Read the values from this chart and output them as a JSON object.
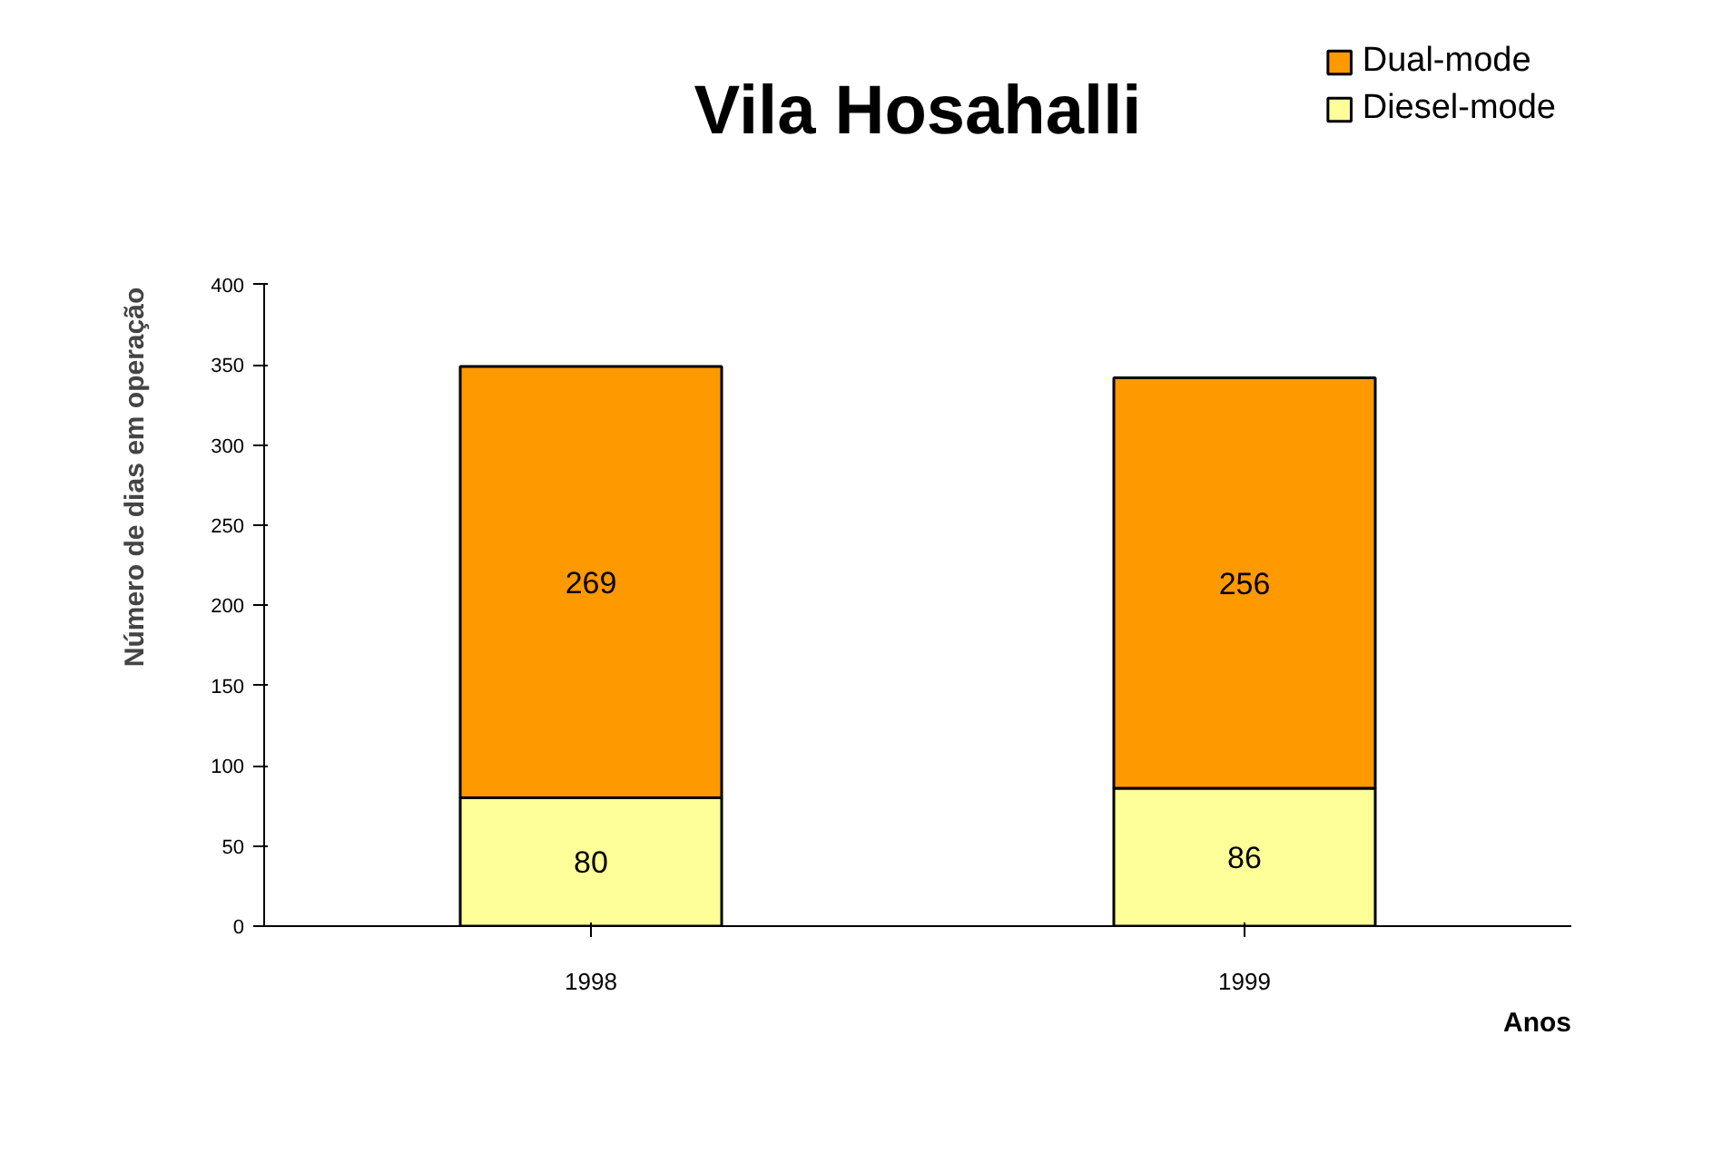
{
  "chart_data": {
    "type": "bar",
    "title": "Vila Hosahalli",
    "ylabel": "Número de dias em operação",
    "xlabel": "Anos",
    "categories": [
      "1998",
      "1999"
    ],
    "stacked": true,
    "series": [
      {
        "name": "Diesel-mode",
        "color": "#ffff99",
        "values": [
          80,
          86
        ]
      },
      {
        "name": "Dual-mode",
        "color": "#ff9900",
        "values": [
          269,
          256
        ]
      }
    ],
    "ylim": [
      0,
      400
    ],
    "yticks": [
      0,
      50,
      100,
      150,
      200,
      250,
      300,
      350,
      400
    ],
    "data_labels": true,
    "legend": "top right",
    "grid": false
  }
}
